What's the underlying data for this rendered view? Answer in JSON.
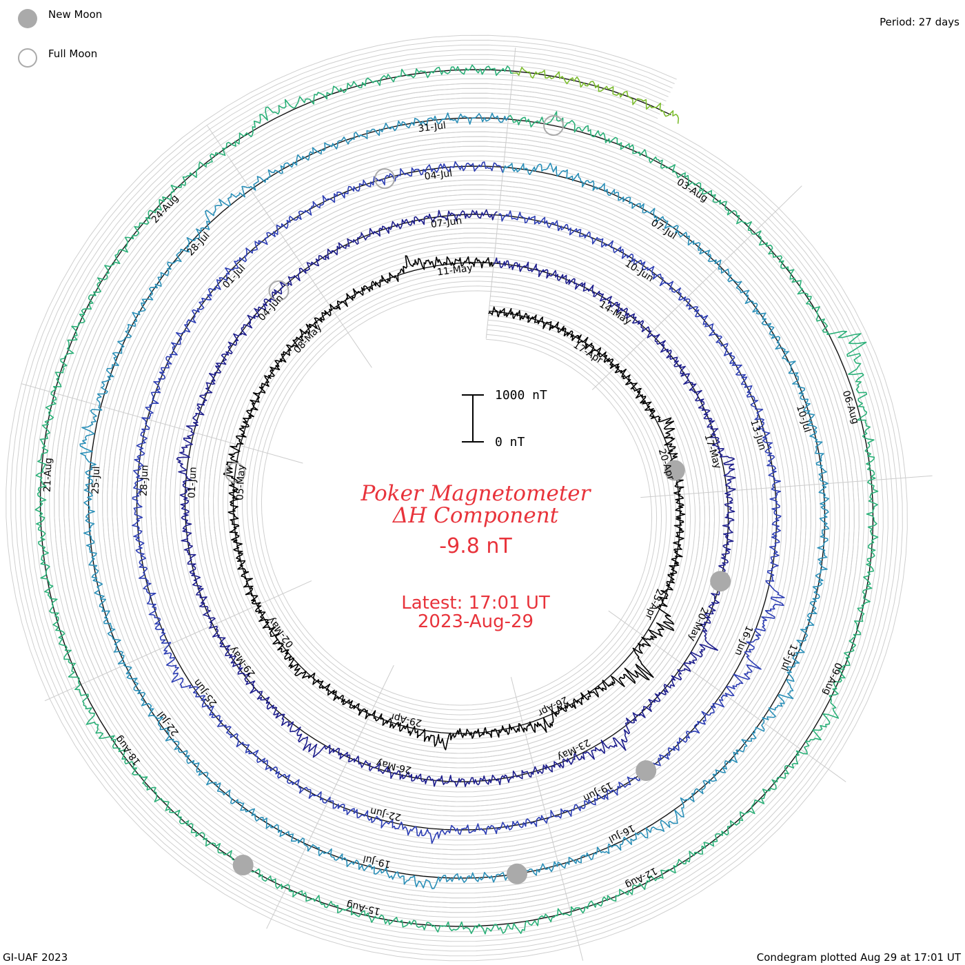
{
  "legend": {
    "new_moon": "New Moon",
    "full_moon": "Full Moon",
    "new_moon_color": "#aaaaaa",
    "full_moon_color": "#aaaaaa"
  },
  "period_label": "Period: 27 days",
  "footer_left": "GI-UAF 2023",
  "footer_right": "Condegram plotted Aug 29 at 17:01 UT",
  "title_line1": "Poker Magnetometer",
  "title_line2": "ΔH Component",
  "current_value": "-9.8 nT",
  "latest_time": "Latest: 17:01 UT",
  "latest_date": "2023-Aug-29",
  "scale_bar": {
    "top_label": "1000 nT",
    "bottom_label": "0 nT"
  },
  "chart_data": {
    "type": "line",
    "subtype": "condegram-spiral",
    "period_days": 27,
    "start_date": "2023-04-15",
    "end_date": "2023-08-29",
    "ring_colors": [
      "#000000",
      "#1d1d8c",
      "#2d3eb4",
      "#2a8fb8",
      "#2bb078",
      "#7dbd30",
      "#b6a214",
      "#c4741a",
      "#b0201a"
    ],
    "date_ticks": [
      [
        "17-Apr",
        "20-Apr",
        "23-Apr",
        "26-Apr",
        "29-Apr",
        "02-May",
        "05-May",
        "08-May",
        "11-May"
      ],
      [
        "14-May",
        "17-May",
        "20-May",
        "23-May",
        "26-May",
        "29-May",
        "01-Jun",
        "04-Jun",
        "07-Jun"
      ],
      [
        "10-Jun",
        "13-Jun",
        "16-Jun",
        "19-Jun",
        "22-Jun",
        "25-Jun",
        "28-Jun",
        "01-Jul",
        "04-Jul"
      ],
      [
        "07-Jul",
        "10-Jul",
        "13-Jul",
        "16-Jul",
        "19-Jul",
        "22-Jul",
        "25-Jul",
        "28-Jul",
        "31-Jul"
      ],
      [
        "03-Aug",
        "06-Aug",
        "09-Aug",
        "12-Aug",
        "15-Aug",
        "18-Aug",
        "21-Aug",
        "24-Aug"
      ]
    ],
    "deltaH_units": "nT",
    "scale_nT": [
      0,
      1000
    ],
    "new_moon_dates": [
      "2023-04-20",
      "2023-05-19",
      "2023-06-18",
      "2023-07-17",
      "2023-08-16"
    ],
    "full_moon_dates": [
      "2023-05-05",
      "2023-06-04",
      "2023-07-03",
      "2023-08-01"
    ],
    "disturbances": [
      {
        "date": "2023-04-19",
        "deltaH_nT": -320
      },
      {
        "date": "2023-04-23",
        "deltaH_nT": -520
      },
      {
        "date": "2023-04-24",
        "deltaH_nT": -700
      },
      {
        "date": "2023-04-26",
        "deltaH_nT": -300
      },
      {
        "date": "2023-04-28",
        "deltaH_nT": -350
      },
      {
        "date": "2023-05-01",
        "deltaH_nT": -200
      },
      {
        "date": "2023-05-05",
        "deltaH_nT": -250
      },
      {
        "date": "2023-05-10",
        "deltaH_nT": -300
      },
      {
        "date": "2023-05-17",
        "deltaH_nT": -250
      },
      {
        "date": "2023-05-20",
        "deltaH_nT": -380
      },
      {
        "date": "2023-05-22",
        "deltaH_nT": -400
      },
      {
        "date": "2023-05-27",
        "deltaH_nT": -350
      },
      {
        "date": "2023-06-01",
        "deltaH_nT": -250
      },
      {
        "date": "2023-06-15",
        "deltaH_nT": -420
      },
      {
        "date": "2023-06-16",
        "deltaH_nT": -380
      },
      {
        "date": "2023-06-21",
        "deltaH_nT": -250
      },
      {
        "date": "2023-06-25",
        "deltaH_nT": -300
      },
      {
        "date": "2023-07-05",
        "deltaH_nT": -200
      },
      {
        "date": "2023-07-13",
        "deltaH_nT": -300
      },
      {
        "date": "2023-07-15",
        "deltaH_nT": -320
      },
      {
        "date": "2023-07-18",
        "deltaH_nT": -260
      },
      {
        "date": "2023-07-25",
        "deltaH_nT": -300
      },
      {
        "date": "2023-07-28",
        "deltaH_nT": -250
      },
      {
        "date": "2023-08-01",
        "deltaH_nT": -220
      },
      {
        "date": "2023-08-05",
        "deltaH_nT": -700
      },
      {
        "date": "2023-08-09",
        "deltaH_nT": -300
      },
      {
        "date": "2023-08-13",
        "deltaH_nT": -200
      },
      {
        "date": "2023-08-18",
        "deltaH_nT": -250
      },
      {
        "date": "2023-08-25",
        "deltaH_nT": -300
      }
    ]
  }
}
